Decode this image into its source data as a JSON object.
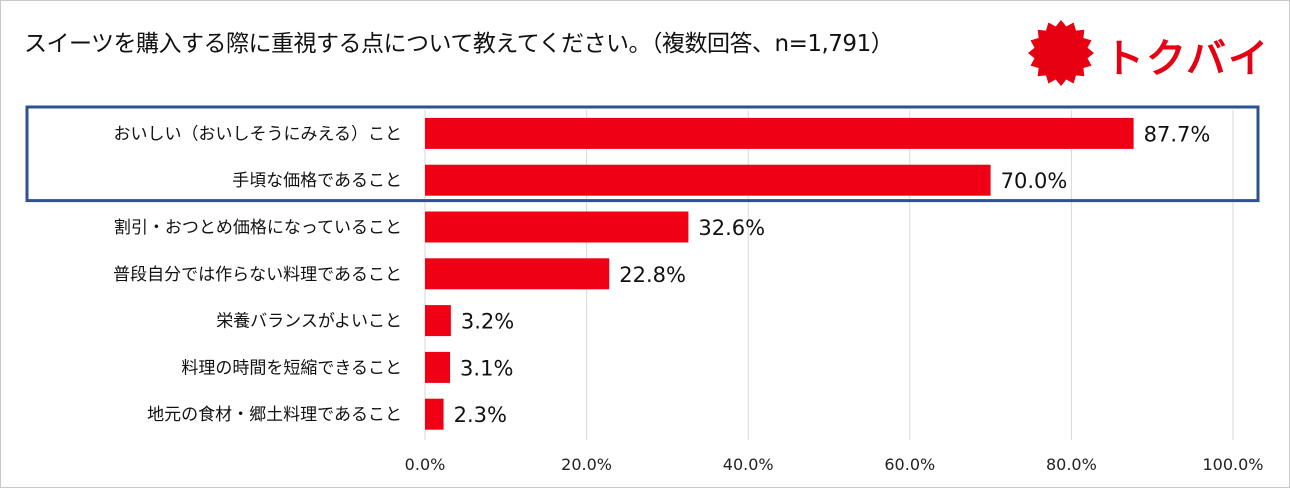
{
  "header": {
    "title": "スイーツを購入する際に重視する点について教えてください。（複数回答、n=1,791）"
  },
  "logo": {
    "text": "トクバイ",
    "icon": "red-starburst-icon",
    "color": "#e60012"
  },
  "colors": {
    "bar": "#f00015",
    "highlight_border": "#2e528f",
    "grid": "#d9d9d9"
  },
  "chart_data": {
    "type": "bar",
    "orientation": "horizontal",
    "categories": [
      "おいしい（おいしそうにみえる）こと",
      "手頃な価格であること",
      "割引・おつとめ価格になっていること",
      "普段自分では作らない料理であること",
      "栄養バランスがよいこと",
      "料理の時間を短縮できること",
      "地元の食材・郷土料理であること"
    ],
    "values": [
      87.7,
      70.0,
      32.6,
      22.8,
      3.2,
      3.1,
      2.3
    ],
    "value_labels": [
      "87.7%",
      "70.0%",
      "32.6%",
      "22.8%",
      "3.2%",
      "3.1%",
      "2.3%"
    ],
    "xlim": [
      0,
      100
    ],
    "xticks": [
      0,
      20,
      40,
      60,
      80,
      100
    ],
    "xtick_labels": [
      "0.0%",
      "20.0%",
      "40.0%",
      "60.0%",
      "80.0%",
      "100.0%"
    ],
    "grid": true,
    "highlighted_rows": [
      0,
      1
    ]
  }
}
